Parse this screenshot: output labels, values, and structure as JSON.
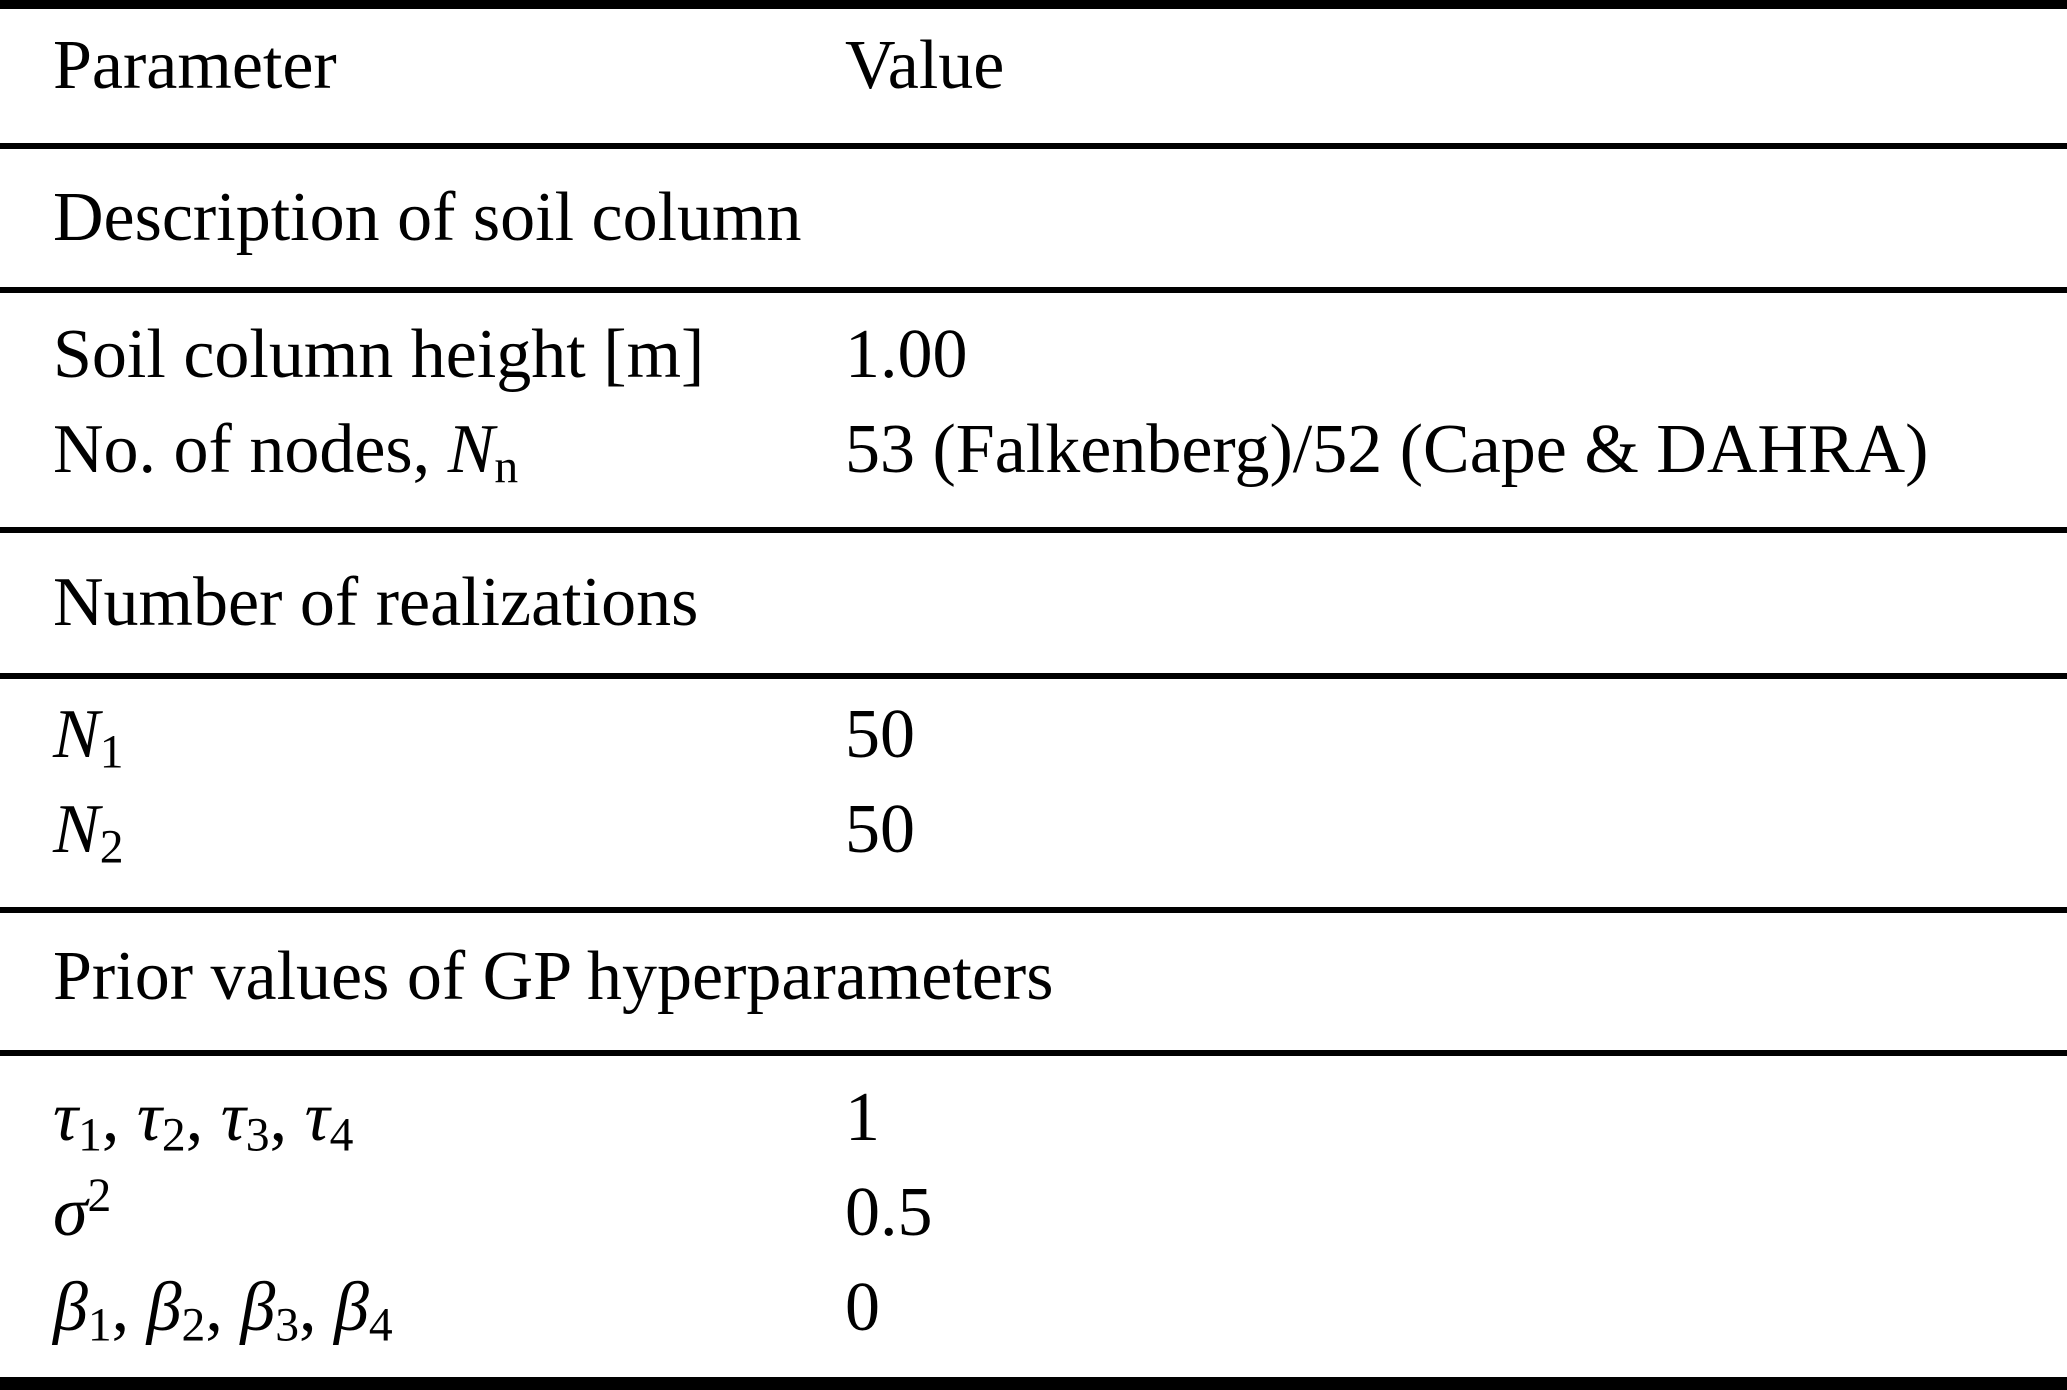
{
  "header": {
    "parameter_label": "Parameter",
    "value_label": "Value"
  },
  "sections": [
    {
      "title": "Description of soil column",
      "rows": [
        {
          "label": "Soil column height [m]",
          "value": "1.00"
        },
        {
          "label_prefix": "No. of nodes, ",
          "symbol": "N",
          "subscript": "n",
          "value": "53 (Falkenberg)/52 (Cape & DAHRA)"
        }
      ]
    },
    {
      "title": "Number of realizations",
      "rows": [
        {
          "symbol": "N",
          "subscript": "1",
          "value": "50"
        },
        {
          "symbol": "N",
          "subscript": "2",
          "value": "50"
        }
      ]
    },
    {
      "title": "Prior values of GP hyperparameters",
      "rows": [
        {
          "symbols": [
            {
              "sym": "τ",
              "sub": "1",
              "sep": ", "
            },
            {
              "sym": "τ",
              "sub": "2",
              "sep": ", "
            },
            {
              "sym": "τ",
              "sub": "3",
              "sep": ", "
            },
            {
              "sym": "τ",
              "sub": "4",
              "sep": ""
            }
          ],
          "value": "1"
        },
        {
          "symbol": "σ",
          "superscript": "2",
          "value": "0.5"
        },
        {
          "symbols": [
            {
              "sym": "β",
              "sub": "1",
              "sep": ", "
            },
            {
              "sym": "β",
              "sub": "2",
              "sep": ", "
            },
            {
              "sym": "β",
              "sub": "3",
              "sep": ", "
            },
            {
              "sym": "β",
              "sub": "4",
              "sep": ""
            }
          ],
          "value": "0"
        }
      ]
    }
  ],
  "colors": {
    "background": "#ffffff",
    "text": "#000000",
    "rule": "#000000"
  }
}
